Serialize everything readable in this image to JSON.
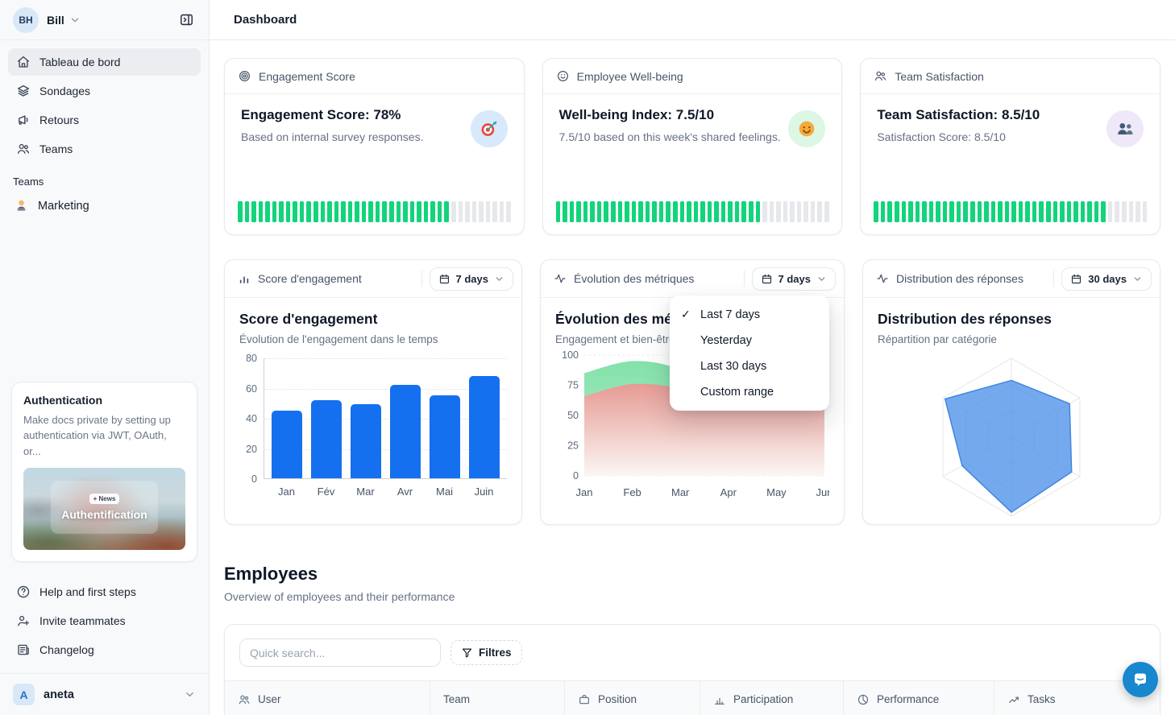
{
  "colors": {
    "bar_blue": "#1570EF",
    "progress_green": "#12D47B",
    "progress_gray": "#E6E8EC",
    "radar_fill": "#5294E9",
    "radar_stroke": "#3F86E2",
    "area_green": "#7DE0A5",
    "area_red": "#E79A94",
    "intercom_blue": "#1787CE"
  },
  "sidebar": {
    "user": {
      "initials": "BH",
      "name": "Bill"
    },
    "nav": [
      {
        "label": "Tableau de bord"
      },
      {
        "label": "Sondages"
      },
      {
        "label": "Retours"
      },
      {
        "label": "Teams"
      }
    ],
    "teams_section_label": "Teams",
    "team_items": [
      {
        "label": "Marketing"
      }
    ],
    "promo": {
      "title": "Authentication",
      "body": "Make docs private by setting up authentication via JWT, OAuth, or...",
      "badge": "+ News",
      "overlay_title": "Authentification"
    },
    "footer": [
      {
        "label": "Help and first steps"
      },
      {
        "label": "Invite teammates"
      },
      {
        "label": "Changelog"
      }
    ],
    "workspace": {
      "initial": "A",
      "name": "aneta"
    }
  },
  "header": {
    "title": "Dashboard"
  },
  "metrics": [
    {
      "header": "Engagement Score",
      "title": "Engagement Score: 78%",
      "subtitle": "Based on internal survey responses.",
      "progress_pct": 78,
      "emoji": "dart-target",
      "emoji_bg": "#D7E9FA"
    },
    {
      "header": "Employee Well-being",
      "title": "Well-being Index: 7.5/10",
      "subtitle": "7.5/10 based on this week's shared feelings.",
      "progress_pct": 75,
      "emoji": "smiling-face",
      "emoji_bg": "#DCF7E3"
    },
    {
      "header": "Team Satisfaction",
      "title": "Team Satisfaction: 8.5/10",
      "subtitle": "Satisfaction Score: 8.5/10",
      "progress_pct": 85,
      "emoji": "busts-in-silhouette",
      "emoji_bg": "#EFE8F8"
    }
  ],
  "charts": {
    "engagement": {
      "header": "Score d'engagement",
      "range_label": "7 days",
      "title": "Score d'engagement",
      "subtitle": "Évolution de l'engagement dans le temps"
    },
    "evolution": {
      "header": "Évolution des métriques",
      "range_label": "7 days",
      "title": "Évolution des métriques",
      "subtitle": "Engagement et bien-être"
    },
    "distribution": {
      "header": "Distribution des réponses",
      "range_label": "30 days",
      "title": "Distribution des réponses",
      "subtitle": "Répartition par catégorie"
    }
  },
  "dropdown": {
    "check_glyph": "✓",
    "items": [
      {
        "label": "Last 7 days",
        "checked": true
      },
      {
        "label": "Yesterday",
        "checked": false
      },
      {
        "label": "Last 30 days",
        "checked": false
      },
      {
        "label": "Custom range",
        "checked": false
      }
    ]
  },
  "employees": {
    "title": "Employees",
    "subtitle": "Overview of employees and their performance",
    "search_placeholder": "Quick search...",
    "filters_label": "Filtres",
    "columns": [
      {
        "label": "User"
      },
      {
        "label": "Team"
      },
      {
        "label": "Position"
      },
      {
        "label": "Participation"
      },
      {
        "label": "Performance"
      },
      {
        "label": "Tasks"
      }
    ]
  },
  "chart_data": [
    {
      "id": "engagement-bar",
      "type": "bar",
      "title": "Score d'engagement",
      "categories": [
        "Jan",
        "Fév",
        "Mar",
        "Avr",
        "Mai",
        "Juin"
      ],
      "values": [
        45,
        52,
        49,
        62,
        55,
        68
      ],
      "ylim": [
        0,
        80
      ],
      "yticks": [
        0,
        20,
        40,
        60,
        80
      ],
      "bar_color": "#1570EF",
      "grid": true
    },
    {
      "id": "evolution-area",
      "type": "area",
      "title": "Évolution des métriques",
      "x": [
        "Jan",
        "Feb",
        "Mar",
        "Apr",
        "May",
        "Jun"
      ],
      "series": [
        {
          "name": "Engagement",
          "values": [
            85,
            95,
            88,
            64,
            66,
            70
          ],
          "color": "#7DE0A5"
        },
        {
          "name": "Bien-être",
          "values": [
            66,
            76,
            72,
            58,
            60,
            64
          ],
          "color": "#E79A94"
        }
      ],
      "ylim": [
        0,
        100
      ],
      "yticks": [
        0,
        25,
        50,
        75,
        100
      ],
      "grid": true
    },
    {
      "id": "distribution-radar",
      "type": "radar",
      "title": "Distribution des réponses",
      "axes_count": 6,
      "values": [
        72,
        85,
        88,
        95,
        72,
        97
      ],
      "max": 100,
      "rings": 3
    }
  ]
}
